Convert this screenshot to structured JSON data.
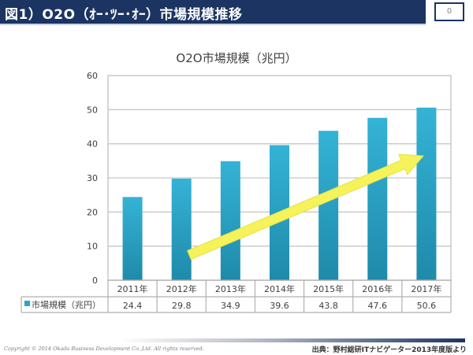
{
  "header": {
    "title": "図1）O2O（ｵｰ･ﾂｰ･ｵｰ）市場規模推移",
    "page_number": "0"
  },
  "colors": {
    "header_bg": "#1b3462",
    "bar": "#2aa6c8",
    "bar_dark": "#1f8aaa",
    "arrow": "#f5f25a",
    "grid": "#c8c8c8"
  },
  "chart_data": {
    "type": "bar",
    "title": "O2O市場規模（兆円）",
    "categories": [
      "2011年",
      "2012年",
      "2013年",
      "2014年",
      "2015年",
      "2016年",
      "2017年"
    ],
    "series": [
      {
        "name": "市場規模（兆円）",
        "values": [
          24.4,
          29.8,
          34.9,
          39.6,
          43.8,
          47.6,
          50.6
        ]
      }
    ],
    "value_labels": [
      "24.4",
      "29.8",
      "34.9",
      "39.6",
      "43.8",
      "47.6",
      "50.6"
    ],
    "ylim": [
      0,
      60
    ],
    "yticks": [
      0,
      10,
      20,
      30,
      40,
      50,
      60
    ],
    "ytick_labels": [
      "0",
      "10",
      "20",
      "30",
      "40",
      "50",
      "60"
    ],
    "xlabel": "",
    "ylabel": "",
    "grid": true,
    "legend": "data-table-left",
    "annotation": "upward-trend-arrow"
  },
  "footer": {
    "copyright": "Copyright © 2014 Okada Business Development Co.,Ltd. All rights reserved.",
    "source": "出典：野村総研ITナビゲーター2013年度版より"
  }
}
